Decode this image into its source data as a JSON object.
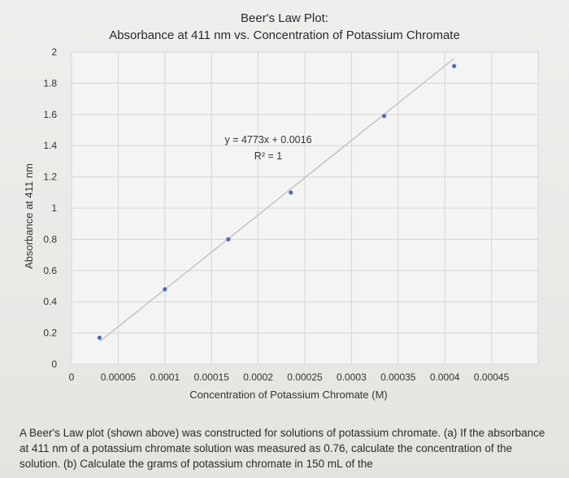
{
  "chart_data": {
    "type": "scatter",
    "title": "Beer's Law Plot:",
    "subtitle": "Absorbance at 411 nm vs. Concentration of Potassium Chromate",
    "xlabel": "Concentration of Potassium Chromate (M)",
    "ylabel": "Absorbance at 411 nm",
    "xlim": [
      0,
      0.0005
    ],
    "ylim": [
      0,
      2
    ],
    "x_ticks": [
      "0",
      "0.00005",
      "0.0001",
      "0.00015",
      "0.0002",
      "0.00025",
      "0.0003",
      "0.00035",
      "0.0004",
      "0.00045"
    ],
    "y_ticks": [
      "0",
      "0.2",
      "0.4",
      "0.6",
      "0.8",
      "1",
      "1.2",
      "1.4",
      "1.6",
      "1.8",
      "2"
    ],
    "grid": true,
    "points": [
      {
        "x": 3e-05,
        "y": 0.17
      },
      {
        "x": 0.0001,
        "y": 0.48
      },
      {
        "x": 0.000168,
        "y": 0.8
      },
      {
        "x": 0.000235,
        "y": 1.1
      },
      {
        "x": 0.000335,
        "y": 1.59
      },
      {
        "x": 0.00041,
        "y": 1.91
      }
    ],
    "trendline": {
      "slope": 4773,
      "intercept": 0.0016,
      "x_range": [
        3e-05,
        0.00041
      ]
    },
    "annotations": {
      "equation": "y = 4773x + 0.0016",
      "r_squared": "R² = 1"
    },
    "colors": {
      "point": "#4a6bc8",
      "trendline": "#b9b9b9",
      "grid": "#d6d6d4",
      "text": "#333333"
    }
  },
  "problem_text": "A Beer's Law plot (shown above) was constructed for solutions of potassium chromate. (a) If the absorbance at 411 nm of a potassium chromate solution was measured as 0.76, calculate the concentration of the solution. (b) Calculate the grams of potassium chromate in 150 mL of the"
}
